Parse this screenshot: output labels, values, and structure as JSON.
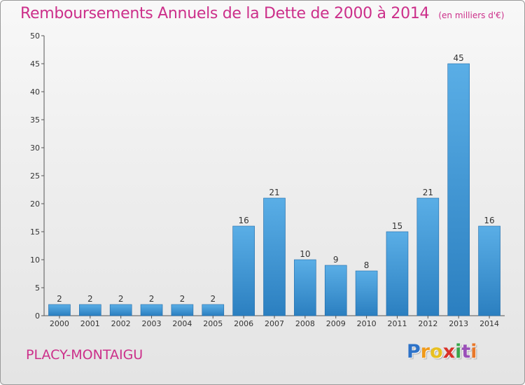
{
  "chart_data": {
    "type": "bar",
    "title": "Remboursements Annuels de la Dette de 2000 à 2014",
    "subtitle": "(en milliers d'€)",
    "categories": [
      "2000",
      "2001",
      "2002",
      "2003",
      "2004",
      "2005",
      "2006",
      "2007",
      "2008",
      "2009",
      "2010",
      "2011",
      "2012",
      "2013",
      "2014"
    ],
    "values": [
      2,
      2,
      2,
      2,
      2,
      2,
      16,
      21,
      10,
      9,
      8,
      15,
      21,
      45,
      16
    ],
    "ylim": [
      0,
      50
    ],
    "yticks": [
      0,
      5,
      10,
      15,
      20,
      25,
      30,
      35,
      40,
      45,
      50
    ],
    "grid": false,
    "bar_color_top": "#5aaee6",
    "bar_color_bottom": "#2b7fc0"
  },
  "footer": {
    "commune": "PLACY-MONTAIGU",
    "brand_letters": [
      "P",
      "r",
      "o",
      "x",
      "i",
      "t",
      "i"
    ],
    "brand_colors": [
      "#2e73c8",
      "#f09a1a",
      "#e8c020",
      "#d8322a",
      "#3aa64a",
      "#9a4fb8",
      "#e8782a"
    ]
  },
  "colors": {
    "title": "#cc2f8a",
    "axis": "#555555"
  }
}
